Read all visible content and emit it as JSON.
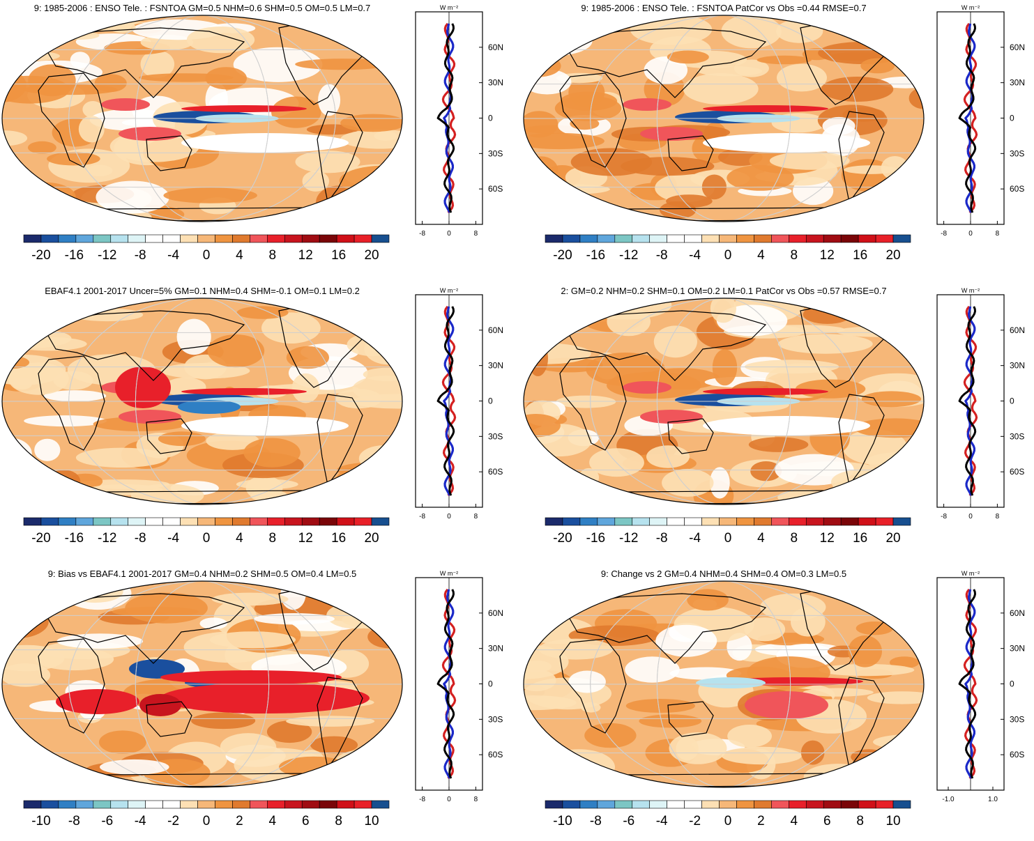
{
  "colors": {
    "palette": [
      "#1b2a6b",
      "#1a4f9e",
      "#2f7fc4",
      "#5fa6dc",
      "#7cc6c4",
      "#b6e2ee",
      "#def4f6",
      "#ffffff",
      "#ffffff",
      "#fde0b4",
      "#f6b778",
      "#ef9440",
      "#e07a2e",
      "#f0555a",
      "#e8202a",
      "#c8141e",
      "#a00c12",
      "#7a0508",
      "#d01018",
      "#e82028",
      "#174f8f"
    ],
    "land": "#000000",
    "grid": "#cfcfcf",
    "zonal_a": "#d42020",
    "zonal_b": "#1a28c8",
    "zonal_c": "#000000"
  },
  "panels": [
    {
      "title": "9: 1985-2006 : ENSO Tele. : FSNTOA GM=0.5 NHM=0.6 SHM=0.5 OM=0.5 LM=0.7",
      "colorbar_labels": [
        "-20",
        "-16",
        "-12",
        "-8",
        "-4",
        "0",
        "4",
        "8",
        "12",
        "16",
        "20"
      ],
      "zonal_unit": "W m⁻²",
      "zonal_ticks": [
        "-8",
        "0",
        "8"
      ],
      "lat_labels": [
        "60N",
        "30N",
        "0",
        "30S",
        "60S"
      ]
    },
    {
      "title": "9: 1985-2006 : ENSO Tele. : FSNTOA PatCor vs Obs =0.44 RMSE=0.7",
      "colorbar_labels": [
        "-20",
        "-16",
        "-12",
        "-8",
        "-4",
        "0",
        "4",
        "8",
        "12",
        "16",
        "20"
      ],
      "zonal_unit": "W m⁻²",
      "zonal_ticks": [
        "-8",
        "0",
        "8"
      ],
      "lat_labels": [
        "60N",
        "30N",
        "0",
        "30S",
        "60S"
      ]
    },
    {
      "title": "EBAF4.1 2001-2017 Uncer=5% GM=0.1 NHM=0.4 SHM=-0.1 OM=0.1 LM=0.2",
      "colorbar_labels": [
        "-20",
        "-16",
        "-12",
        "-8",
        "-4",
        "0",
        "4",
        "8",
        "12",
        "16",
        "20"
      ],
      "zonal_unit": "W m⁻²",
      "zonal_ticks": [
        "-8",
        "0",
        "8"
      ],
      "lat_labels": [
        "60N",
        "30N",
        "0",
        "30S",
        "60S"
      ]
    },
    {
      "title": "2: GM=0.2 NHM=0.2 SHM=0.1 OM=0.2 LM=0.1 PatCor vs Obs =0.57 RMSE=0.7",
      "colorbar_labels": [
        "-20",
        "-16",
        "-12",
        "-8",
        "-4",
        "0",
        "4",
        "8",
        "12",
        "16",
        "20"
      ],
      "zonal_unit": "W m⁻²",
      "zonal_ticks": [
        "-8",
        "0",
        "8"
      ],
      "lat_labels": [
        "60N",
        "30N",
        "0",
        "30S",
        "60S"
      ]
    },
    {
      "title": "9: Bias vs EBAF4.1 2001-2017 GM=0.4 NHM=0.2 SHM=0.5 OM=0.4 LM=0.5",
      "colorbar_labels": [
        "-10",
        "-8",
        "-6",
        "-4",
        "-2",
        "0",
        "2",
        "4",
        "6",
        "8",
        "10"
      ],
      "zonal_unit": "W m⁻²",
      "zonal_ticks": [
        "-8",
        "0",
        "8"
      ],
      "lat_labels": [
        "60N",
        "30N",
        "0",
        "30S",
        "60S"
      ]
    },
    {
      "title": "9: Change vs 2 GM=0.4 NHM=0.4 SHM=0.4 OM=0.3 LM=0.5",
      "colorbar_labels": [
        "-10",
        "-8",
        "-6",
        "-4",
        "-2",
        "0",
        "2",
        "4",
        "6",
        "8",
        "10"
      ],
      "zonal_unit": "W m⁻²",
      "zonal_ticks": [
        "-1.0",
        "1.0"
      ],
      "lat_labels": [
        "60N",
        "30N",
        "0",
        "30S",
        "60S"
      ]
    }
  ],
  "chart_data": [
    {
      "type": "heatmap",
      "title": "9: 1985-2006 : ENSO Tele. : FSNTOA GM=0.5 NHM=0.6 SHM=0.5 OM=0.5 LM=0.7",
      "colorbar": {
        "min": -20,
        "max": 20,
        "ticks": [
          -20,
          -16,
          -12,
          -8,
          -4,
          0,
          4,
          8,
          12,
          16,
          20
        ]
      },
      "zonal_mean": {
        "xlim": [
          -10,
          10
        ],
        "ylim": [
          -90,
          90
        ],
        "xticks": [
          -8,
          0,
          8
        ],
        "yticks": [
          60,
          30,
          0,
          -30,
          -60
        ]
      }
    },
    {
      "type": "heatmap",
      "title": "9: 1985-2006 : ENSO Tele. : FSNTOA PatCor vs Obs =0.44 RMSE=0.7",
      "colorbar": {
        "min": -20,
        "max": 20,
        "ticks": [
          -20,
          -16,
          -12,
          -8,
          -4,
          0,
          4,
          8,
          12,
          16,
          20
        ]
      },
      "zonal_mean": {
        "xlim": [
          -10,
          10
        ],
        "ylim": [
          -90,
          90
        ],
        "xticks": [
          -8,
          0,
          8
        ],
        "yticks": [
          60,
          30,
          0,
          -30,
          -60
        ]
      }
    },
    {
      "type": "heatmap",
      "title": "EBAF4.1 2001-2017 Uncer=5% GM=0.1 NHM=0.4 SHM=-0.1 OM=0.1 LM=0.2",
      "colorbar": {
        "min": -20,
        "max": 20,
        "ticks": [
          -20,
          -16,
          -12,
          -8,
          -4,
          0,
          4,
          8,
          12,
          16,
          20
        ]
      },
      "zonal_mean": {
        "xlim": [
          -10,
          10
        ],
        "ylim": [
          -90,
          90
        ],
        "xticks": [
          -8,
          0,
          8
        ],
        "yticks": [
          60,
          30,
          0,
          -30,
          -60
        ]
      }
    },
    {
      "type": "heatmap",
      "title": "2: GM=0.2 NHM=0.2 SHM=0.1 OM=0.2 LM=0.1 PatCor vs Obs =0.57 RMSE=0.7",
      "colorbar": {
        "min": -20,
        "max": 20,
        "ticks": [
          -20,
          -16,
          -12,
          -8,
          -4,
          0,
          4,
          8,
          12,
          16,
          20
        ]
      },
      "zonal_mean": {
        "xlim": [
          -10,
          10
        ],
        "ylim": [
          -90,
          90
        ],
        "xticks": [
          -8,
          0,
          8
        ],
        "yticks": [
          60,
          30,
          0,
          -30,
          -60
        ]
      }
    },
    {
      "type": "heatmap",
      "title": "9: Bias vs EBAF4.1 2001-2017 GM=0.4 NHM=0.2 SHM=0.5 OM=0.4 LM=0.5",
      "colorbar": {
        "min": -10,
        "max": 10,
        "ticks": [
          -10,
          -8,
          -6,
          -4,
          -2,
          0,
          2,
          4,
          6,
          8,
          10
        ]
      },
      "zonal_mean": {
        "xlim": [
          -10,
          10
        ],
        "ylim": [
          -90,
          90
        ],
        "xticks": [
          -8,
          0,
          8
        ],
        "yticks": [
          60,
          30,
          0,
          -30,
          -60
        ]
      }
    },
    {
      "type": "heatmap",
      "title": "9: Change vs 2 GM=0.4 NHM=0.4 SHM=0.4 OM=0.3 LM=0.5",
      "colorbar": {
        "min": -10,
        "max": 10,
        "ticks": [
          -10,
          -8,
          -6,
          -4,
          -2,
          0,
          2,
          4,
          6,
          8,
          10
        ]
      },
      "zonal_mean": {
        "xlim": [
          -1.5,
          1.5
        ],
        "ylim": [
          -90,
          90
        ],
        "xticks": [
          -1.0,
          1.0
        ],
        "yticks": [
          60,
          30,
          0,
          -30,
          -60
        ]
      }
    }
  ]
}
